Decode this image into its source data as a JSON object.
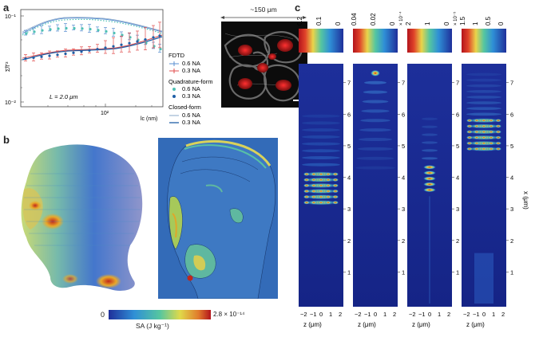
{
  "panel_a": {
    "letter": "a",
    "y_label": "Σ̃/Γ²",
    "x_label": "lc (nm)",
    "y_tick_top": "10⁻¹",
    "y_tick_bottom": "10⁻²",
    "x_tick_mid": "10²",
    "annotation": "L = 2.0 μm",
    "legend": {
      "group1_title": "FDTD",
      "group1_item1": "0.6 NA",
      "group1_item2": "0.3 NA",
      "group2_title": "Quadrature-form",
      "group2_item1": "0.6 NA",
      "group2_item2": "0.3 NA",
      "group3_title": "Closed-form",
      "group3_item1": "0.6 NA",
      "group3_item2": "0.3 NA"
    },
    "colors": {
      "na06": "#4fc1b5",
      "na03": "#1f5fa6",
      "fdtd06": "#5a8fd1",
      "fdtd03": "#e04c4c"
    },
    "micrograph_label": "~150 μm"
  },
  "panel_b": {
    "letter": "b",
    "colorbar_min": "0",
    "colorbar_max": "2.8 × 10⁻¹⁴",
    "colorbar_label": "SA (J kg⁻¹)"
  },
  "panel_c": {
    "letter": "c",
    "colorbars": [
      {
        "ticks": [
          "0.2",
          "0.1",
          "0"
        ]
      },
      {
        "ticks": [
          "0.04",
          "0.02",
          "0"
        ],
        "exponent": "× 10⁻⁴"
      },
      {
        "ticks": [
          "2",
          "1",
          "0"
        ],
        "exponent": "× 10⁻⁵"
      },
      {
        "ticks": [
          "1.5",
          "1",
          "0.5",
          "0"
        ]
      }
    ],
    "x_axis_ticks": [
      "−2",
      "−1",
      "0",
      "1",
      "2"
    ],
    "z_label": "z (μm)",
    "x_axis_label": "x (μm)",
    "y_ticks": [
      "7",
      "6",
      "5",
      "4",
      "3",
      "2",
      "1"
    ]
  }
}
